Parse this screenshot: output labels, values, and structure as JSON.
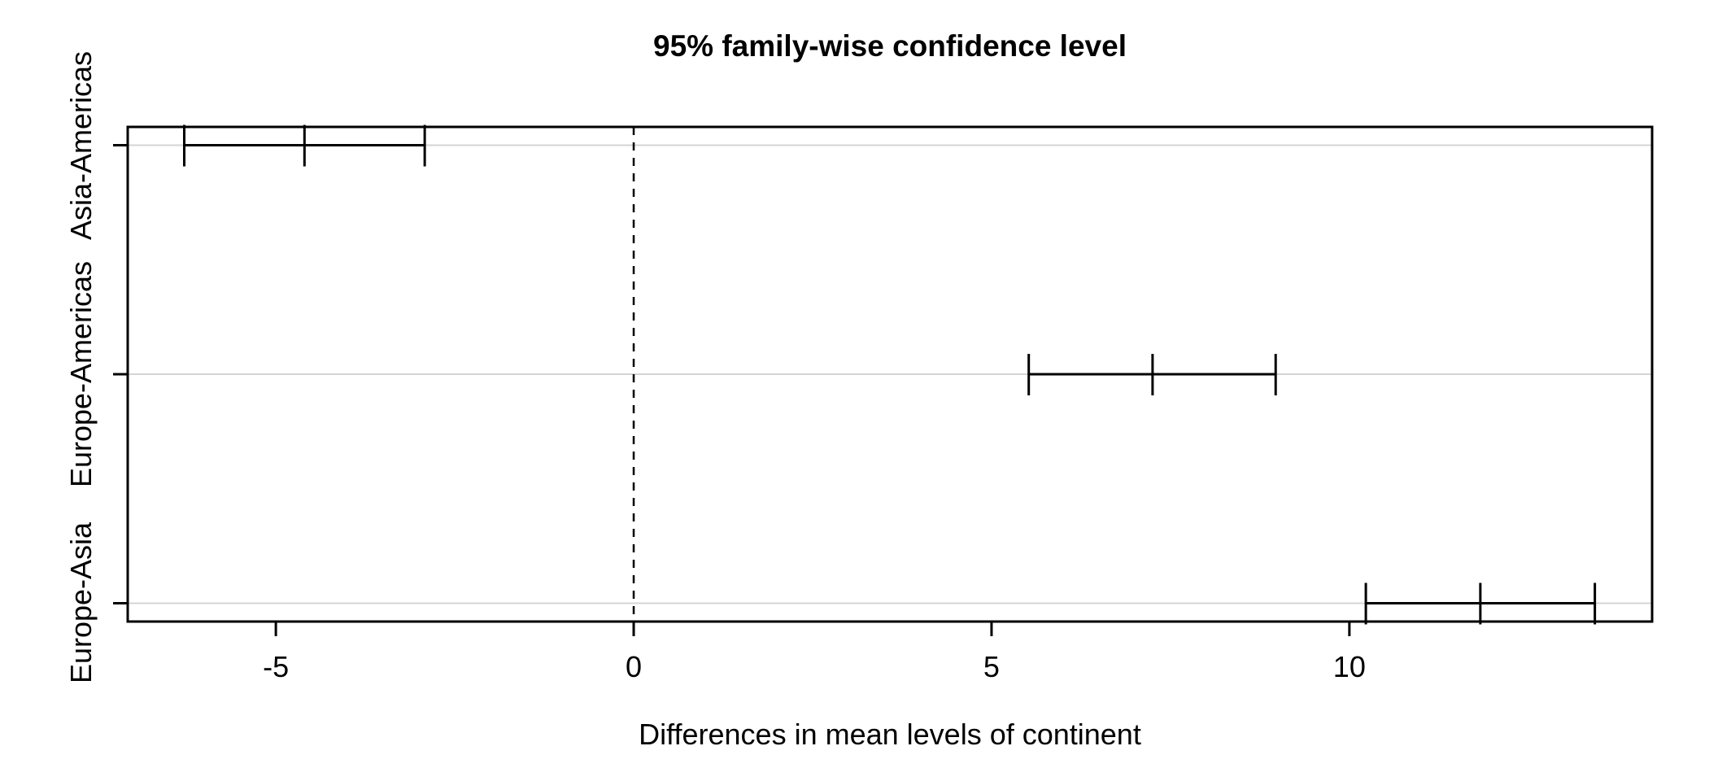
{
  "chart_data": {
    "type": "interval",
    "chart_kind": "TukeyHSD 95% confidence interval plot (R base graphics)",
    "title": "95% family-wise confidence level",
    "xlabel": "Differences in mean levels of continent",
    "ylabel_side": "left-rotated",
    "x_ticks": [
      {
        "value": -5,
        "label": "-5"
      },
      {
        "value": 0,
        "label": "0"
      },
      {
        "value": 5,
        "label": "5"
      },
      {
        "value": 10,
        "label": "10"
      }
    ],
    "xlim": [
      -7.07,
      14.23
    ],
    "ylim": [
      0.92,
      3.08
    ],
    "zero_reference_line": {
      "value": 0,
      "style": "dashed"
    },
    "grid": "horizontal light-gray line at each comparison row",
    "legend": "none",
    "comparisons": [
      {
        "label": "Asia-Americas",
        "y": 3,
        "diff": -4.6,
        "lwr": -6.28,
        "upr": -2.92
      },
      {
        "label": "Europe-Americas",
        "y": 2,
        "diff": 7.25,
        "lwr": 5.52,
        "upr": 8.97
      },
      {
        "label": "Europe-Asia",
        "y": 1,
        "diff": 11.83,
        "lwr": 10.23,
        "upr": 13.43
      }
    ],
    "colors": {
      "line": "#000000",
      "grid": "#d4d4d4",
      "text": "#000000",
      "background": "#ffffff"
    }
  }
}
